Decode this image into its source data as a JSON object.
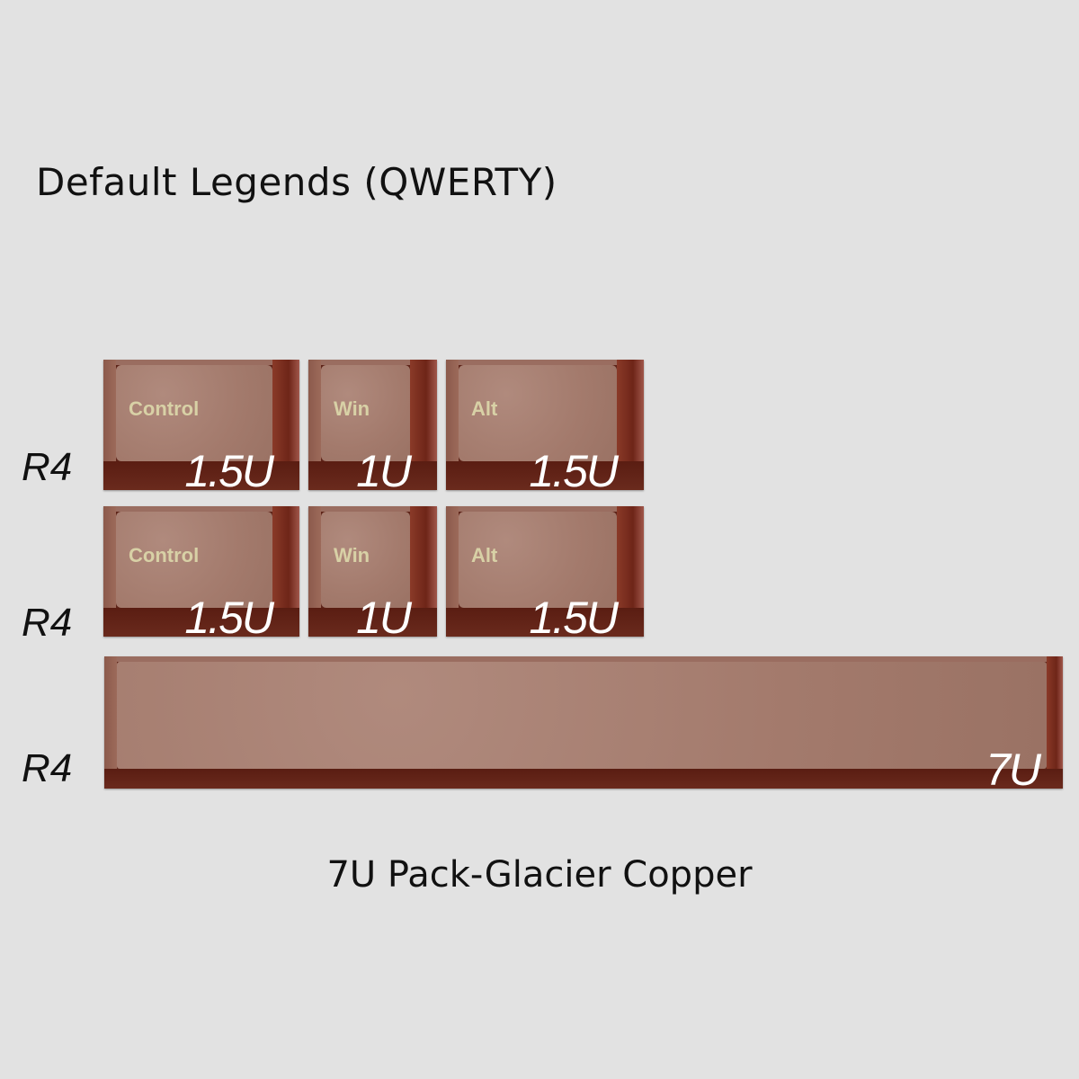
{
  "title": "Default Legends (QWERTY)",
  "caption": "7U Pack-Glacier Copper",
  "colors": {
    "background": "#e2e2e2",
    "keycap_copper": "#a37a6c",
    "legend": "#d8d1a6"
  },
  "rows": [
    {
      "profile": "R4",
      "keys": [
        {
          "legend": "Control",
          "size": "1.5U"
        },
        {
          "legend": "Win",
          "size": "1U"
        },
        {
          "legend": "Alt",
          "size": "1.5U"
        }
      ]
    },
    {
      "profile": "R4",
      "keys": [
        {
          "legend": "Control",
          "size": "1.5U"
        },
        {
          "legend": "Win",
          "size": "1U"
        },
        {
          "legend": "Alt",
          "size": "1.5U"
        }
      ]
    },
    {
      "profile": "R4",
      "keys": [
        {
          "legend": "",
          "size": "7U"
        }
      ]
    }
  ]
}
